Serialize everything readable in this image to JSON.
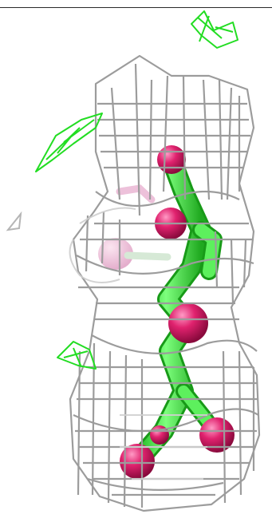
{
  "image": {
    "kind": "molecular-density-render",
    "colors": {
      "background": "#ffffff",
      "mesh": "#9a9a9a",
      "mesh_light": "#c9c9c9",
      "difference_map": "#22dd22",
      "ligand_carbon": "#44ff44",
      "ligand_oxygen": "#e0226e",
      "ghost_pink": "#e8a0c8",
      "top_border": "#2a2a2a"
    }
  }
}
